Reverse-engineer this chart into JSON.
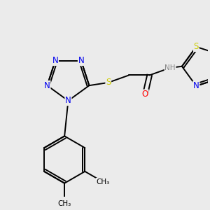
{
  "background_color": "#ebebeb",
  "bond_color": "#000000",
  "atom_colors": {
    "N": "#0000ee",
    "S": "#cccc00",
    "O": "#ff0000",
    "H": "#888888",
    "C": "#000000"
  },
  "font_size": 8.5,
  "fig_width": 3.0,
  "fig_height": 3.0,
  "xlim": [
    0.2,
    3.0
  ],
  "ylim": [
    0.5,
    3.0
  ]
}
